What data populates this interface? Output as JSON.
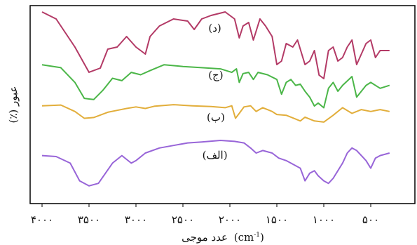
{
  "chart_data": {
    "type": "line",
    "xlabel": "عدد موجی (cm-1)",
    "xlabel_main": "عدد موجی",
    "xlabel_unit_open": "(cm",
    "xlabel_unit_sup": "-1",
    "xlabel_unit_close": ")",
    "ylabel": "عبور (٪)",
    "xlim": [
      4000,
      300
    ],
    "x_reversed": true,
    "grid": false,
    "ticks": [
      {
        "value": 4000,
        "label": "۴۰۰۰"
      },
      {
        "value": 3500,
        "label": "۳۵۰۰"
      },
      {
        "value": 3000,
        "label": "۳۰۰۰"
      },
      {
        "value": 2500,
        "label": "۲۵۰۰"
      },
      {
        "value": 2000,
        "label": "۲۰۰۰"
      },
      {
        "value": 1500,
        "label": "۱۵۰۰"
      },
      {
        "value": 1000,
        "label": "۱۰۰۰"
      },
      {
        "value": 500,
        "label": "۵۰۰"
      }
    ],
    "series": [
      {
        "name": "(د)",
        "color": "#b33a66",
        "label_at": 2160,
        "points": [
          [
            4000,
            5
          ],
          [
            3850,
            15
          ],
          [
            3650,
            55
          ],
          [
            3500,
            91
          ],
          [
            3380,
            85
          ],
          [
            3300,
            58
          ],
          [
            3200,
            55
          ],
          [
            3100,
            40
          ],
          [
            3000,
            55
          ],
          [
            2950,
            60
          ],
          [
            2900,
            65
          ],
          [
            2850,
            40
          ],
          [
            2750,
            25
          ],
          [
            2600,
            15
          ],
          [
            2450,
            18
          ],
          [
            2380,
            30
          ],
          [
            2300,
            15
          ],
          [
            2200,
            10
          ],
          [
            2050,
            5
          ],
          [
            1950,
            15
          ],
          [
            1900,
            42
          ],
          [
            1860,
            25
          ],
          [
            1800,
            20
          ],
          [
            1750,
            45
          ],
          [
            1680,
            15
          ],
          [
            1620,
            25
          ],
          [
            1550,
            40
          ],
          [
            1500,
            80
          ],
          [
            1450,
            75
          ],
          [
            1400,
            50
          ],
          [
            1330,
            55
          ],
          [
            1280,
            45
          ],
          [
            1200,
            80
          ],
          [
            1150,
            75
          ],
          [
            1100,
            60
          ],
          [
            1050,
            95
          ],
          [
            1000,
            100
          ],
          [
            950,
            60
          ],
          [
            900,
            55
          ],
          [
            850,
            75
          ],
          [
            800,
            70
          ],
          [
            750,
            55
          ],
          [
            700,
            45
          ],
          [
            650,
            80
          ],
          [
            600,
            65
          ],
          [
            550,
            50
          ],
          [
            500,
            45
          ],
          [
            450,
            70
          ],
          [
            400,
            60
          ],
          [
            300,
            60
          ]
        ]
      },
      {
        "name": "(ج)",
        "color": "#4bb648",
        "label_at": 2150,
        "points": [
          [
            4000,
            5
          ],
          [
            3800,
            10
          ],
          [
            3650,
            35
          ],
          [
            3550,
            62
          ],
          [
            3450,
            64
          ],
          [
            3350,
            48
          ],
          [
            3250,
            28
          ],
          [
            3150,
            32
          ],
          [
            3050,
            18
          ],
          [
            2950,
            22
          ],
          [
            2850,
            15
          ],
          [
            2700,
            5
          ],
          [
            2500,
            8
          ],
          [
            2300,
            10
          ],
          [
            2100,
            12
          ],
          [
            1980,
            18
          ],
          [
            1930,
            12
          ],
          [
            1900,
            35
          ],
          [
            1860,
            20
          ],
          [
            1800,
            18
          ],
          [
            1750,
            30
          ],
          [
            1700,
            18
          ],
          [
            1600,
            22
          ],
          [
            1500,
            30
          ],
          [
            1450,
            55
          ],
          [
            1400,
            35
          ],
          [
            1350,
            30
          ],
          [
            1300,
            40
          ],
          [
            1250,
            38
          ],
          [
            1200,
            50
          ],
          [
            1150,
            60
          ],
          [
            1100,
            75
          ],
          [
            1060,
            70
          ],
          [
            1000,
            78
          ],
          [
            950,
            45
          ],
          [
            900,
            35
          ],
          [
            850,
            50
          ],
          [
            800,
            40
          ],
          [
            700,
            25
          ],
          [
            650,
            60
          ],
          [
            550,
            40
          ],
          [
            500,
            35
          ],
          [
            400,
            45
          ],
          [
            300,
            40
          ]
        ]
      },
      {
        "name": "(ب)",
        "color": "#e2ae3b",
        "label_at": 2150,
        "points": [
          [
            4000,
            5
          ],
          [
            3800,
            3
          ],
          [
            3650,
            20
          ],
          [
            3550,
            38
          ],
          [
            3450,
            36
          ],
          [
            3300,
            22
          ],
          [
            3200,
            17
          ],
          [
            3100,
            12
          ],
          [
            3000,
            8
          ],
          [
            2900,
            12
          ],
          [
            2800,
            6
          ],
          [
            2600,
            2
          ],
          [
            2400,
            5
          ],
          [
            2200,
            7
          ],
          [
            2050,
            10
          ],
          [
            1980,
            5
          ],
          [
            1940,
            38
          ],
          [
            1900,
            25
          ],
          [
            1850,
            8
          ],
          [
            1780,
            5
          ],
          [
            1720,
            20
          ],
          [
            1650,
            10
          ],
          [
            1550,
            20
          ],
          [
            1500,
            28
          ],
          [
            1400,
            30
          ],
          [
            1300,
            40
          ],
          [
            1250,
            45
          ],
          [
            1200,
            35
          ],
          [
            1100,
            45
          ],
          [
            1000,
            48
          ],
          [
            900,
            30
          ],
          [
            800,
            10
          ],
          [
            700,
            25
          ],
          [
            600,
            15
          ],
          [
            500,
            20
          ],
          [
            400,
            15
          ],
          [
            300,
            20
          ]
        ]
      },
      {
        "name": "(الف)",
        "color": "#9865d8",
        "label_at": 2160,
        "points": [
          [
            4000,
            30
          ],
          [
            3850,
            32
          ],
          [
            3700,
            45
          ],
          [
            3600,
            80
          ],
          [
            3500,
            90
          ],
          [
            3400,
            85
          ],
          [
            3250,
            45
          ],
          [
            3150,
            30
          ],
          [
            3050,
            45
          ],
          [
            3000,
            40
          ],
          [
            2900,
            25
          ],
          [
            2750,
            15
          ],
          [
            2600,
            10
          ],
          [
            2450,
            5
          ],
          [
            2300,
            3
          ],
          [
            2100,
            0
          ],
          [
            1950,
            2
          ],
          [
            1850,
            5
          ],
          [
            1780,
            15
          ],
          [
            1720,
            25
          ],
          [
            1650,
            20
          ],
          [
            1550,
            25
          ],
          [
            1480,
            35
          ],
          [
            1400,
            40
          ],
          [
            1350,
            45
          ],
          [
            1300,
            50
          ],
          [
            1250,
            55
          ],
          [
            1200,
            80
          ],
          [
            1150,
            65
          ],
          [
            1100,
            60
          ],
          [
            1060,
            70
          ],
          [
            1000,
            80
          ],
          [
            950,
            85
          ],
          [
            900,
            75
          ],
          [
            850,
            60
          ],
          [
            800,
            45
          ],
          [
            750,
            25
          ],
          [
            700,
            15
          ],
          [
            650,
            20
          ],
          [
            600,
            30
          ],
          [
            550,
            40
          ],
          [
            500,
            55
          ],
          [
            450,
            35
          ],
          [
            400,
            30
          ],
          [
            300,
            25
          ]
        ]
      }
    ]
  }
}
